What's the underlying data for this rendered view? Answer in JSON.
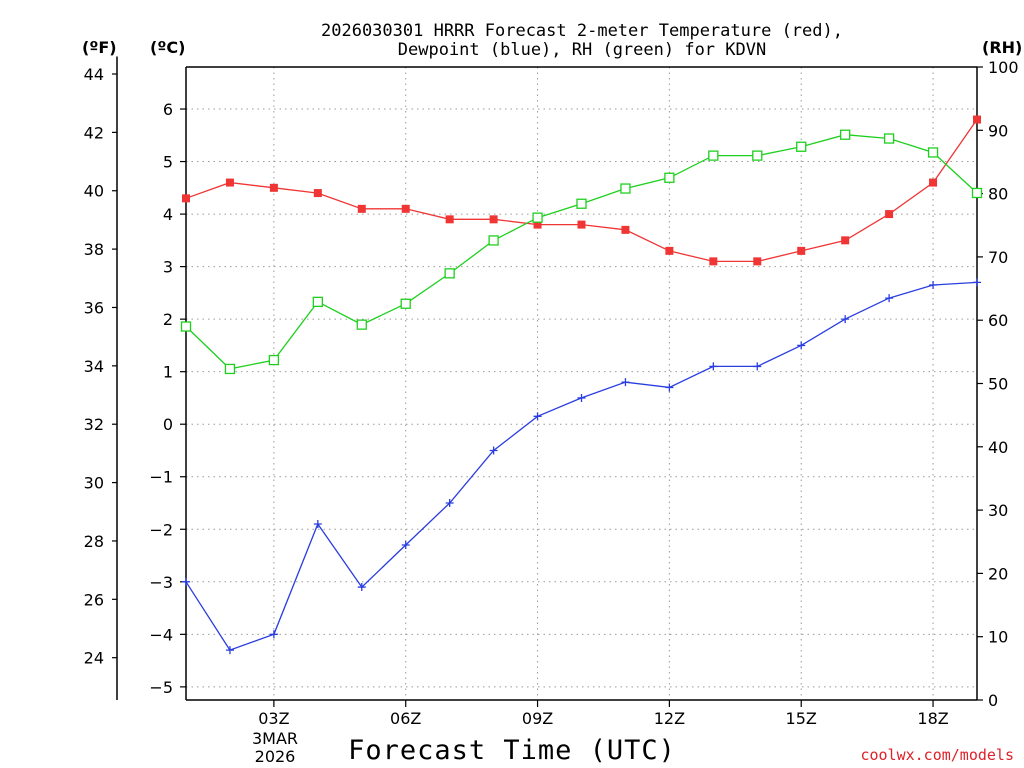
{
  "chart_data": {
    "type": "line",
    "title": [
      "2026030301 HRRR Forecast 2-meter Temperature (red),",
      "Dewpoint (blue), RH (green) for KDVN"
    ],
    "xlabel": "Forecast Time (UTC)",
    "credit": "coolwx.com/models",
    "unit_labels": {
      "fahrenheit": "(ºF)",
      "celsius": "(ºC)",
      "rh": "(RH)"
    },
    "x_hours": [
      1,
      2,
      3,
      4,
      5,
      6,
      7,
      8,
      9,
      10,
      11,
      12,
      13,
      14,
      15,
      16,
      17,
      18,
      19
    ],
    "x_range": [
      1,
      19
    ],
    "x_ticks": [
      {
        "hour": 3,
        "label": "03Z"
      },
      {
        "hour": 6,
        "label": "06Z"
      },
      {
        "hour": 9,
        "label": "09Z"
      },
      {
        "hour": 12,
        "label": "12Z"
      },
      {
        "hour": 15,
        "label": "15Z"
      },
      {
        "hour": 18,
        "label": "18Z"
      }
    ],
    "date_label": [
      "3MAR",
      "2026"
    ],
    "ylim_celsius": [
      -5.25,
      6.8
    ],
    "yticks_celsius": [
      -5,
      -4,
      -3,
      -2,
      -1,
      0,
      1,
      2,
      3,
      4,
      5,
      6
    ],
    "yticks_fahrenheit": [
      24,
      26,
      28,
      30,
      32,
      34,
      36,
      38,
      40,
      42,
      44
    ],
    "ylim_rh": [
      0,
      100
    ],
    "yticks_rh": [
      0,
      10,
      20,
      30,
      40,
      50,
      60,
      70,
      80,
      90,
      100
    ],
    "series": [
      {
        "name": "Temperature",
        "axis": "celsius",
        "color": "#f03535",
        "marker": "filled-square",
        "values": [
          4.3,
          4.6,
          4.5,
          4.4,
          4.1,
          4.1,
          3.9,
          3.9,
          3.8,
          3.8,
          3.7,
          3.3,
          3.1,
          3.1,
          3.3,
          3.5,
          4.0,
          4.6,
          5.8
        ]
      },
      {
        "name": "Dewpoint",
        "axis": "celsius",
        "color": "#2a3de0",
        "marker": "plus",
        "values": [
          -3.0,
          -4.3,
          -4.0,
          -1.9,
          -3.1,
          -2.3,
          -1.5,
          -0.5,
          0.15,
          0.5,
          0.8,
          0.7,
          1.1,
          1.1,
          1.5,
          2.0,
          2.4,
          2.65,
          2.7
        ]
      },
      {
        "name": "Relative Humidity",
        "axis": "rh",
        "color": "#1ed01e",
        "marker": "open-square",
        "values": [
          59.0,
          52.3,
          53.7,
          62.9,
          59.3,
          62.6,
          67.4,
          72.6,
          76.2,
          78.4,
          80.8,
          82.5,
          86.0,
          86.0,
          87.4,
          89.3,
          88.7,
          86.5,
          80.1
        ]
      }
    ]
  }
}
